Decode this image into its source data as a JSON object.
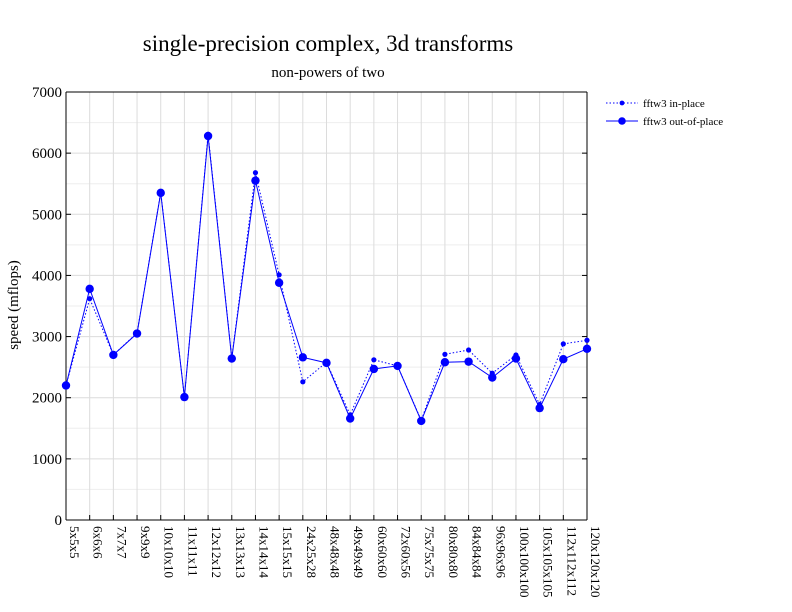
{
  "chart_data": {
    "type": "line",
    "title": "single-precision complex, 3d transforms",
    "subtitle": "non-powers of two",
    "xlabel": "",
    "ylabel": "speed (mflops)",
    "ylim": [
      0,
      7000
    ],
    "yticks": [
      0,
      1000,
      2000,
      3000,
      4000,
      5000,
      6000,
      7000
    ],
    "grid": true,
    "legend_position": "top-right outside",
    "categories": [
      "5x5x5",
      "6x6x6",
      "7x7x7",
      "9x9x9",
      "10x10x10",
      "11x11x11",
      "12x12x12",
      "13x13x13",
      "14x14x14",
      "15x15x15",
      "24x25x28",
      "48x48x48",
      "49x49x49",
      "60x60x60",
      "72x60x56",
      "75x75x75",
      "80x80x80",
      "84x84x84",
      "96x96x96",
      "100x100x100",
      "105x105x105",
      "112x112x112",
      "120x120x120"
    ],
    "series": [
      {
        "name": "fftw3 in-place",
        "color": "#0000ff",
        "style": "dotted",
        "marker": "small-dot",
        "values": [
          2200,
          3620,
          2700,
          3060,
          5360,
          2010,
          6310,
          2650,
          5680,
          4010,
          2260,
          2580,
          1720,
          2620,
          2520,
          1630,
          2710,
          2780,
          2400,
          2700,
          1890,
          2880,
          2940
        ]
      },
      {
        "name": "fftw3 out-of-place",
        "color": "#0000ff",
        "style": "solid",
        "marker": "dot",
        "values": [
          2200,
          3780,
          2700,
          3050,
          5350,
          2010,
          6280,
          2640,
          5550,
          3880,
          2660,
          2570,
          1660,
          2470,
          2520,
          1620,
          2580,
          2590,
          2330,
          2640,
          1830,
          2630,
          2800
        ]
      }
    ]
  }
}
